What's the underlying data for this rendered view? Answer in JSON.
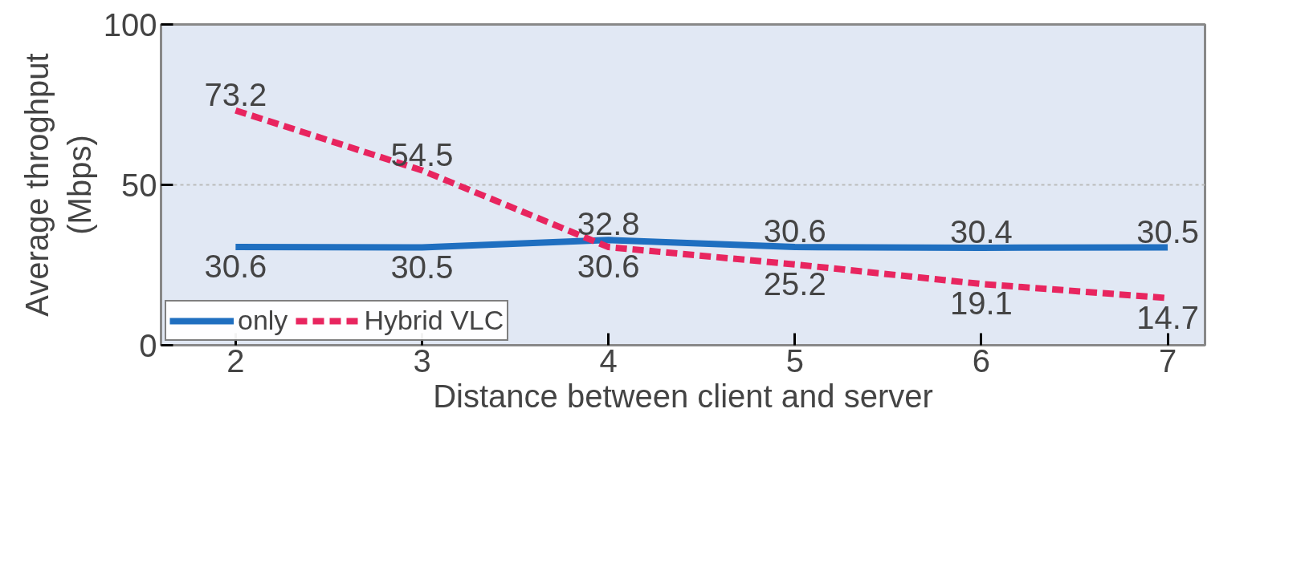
{
  "chart_data": {
    "type": "line",
    "xlabel": "Distance between client and server",
    "ylabel": "Average throghput\n(Mbps)",
    "x": [
      2,
      3,
      4,
      5,
      6,
      7
    ],
    "xlim": [
      1.6,
      7.2
    ],
    "xticks": [
      2,
      3,
      4,
      5,
      6,
      7
    ],
    "ylim": [
      0,
      100
    ],
    "yticks": [
      0,
      50,
      100
    ],
    "series": [
      {
        "name": "only",
        "color": "#1f6fc0",
        "line_style": "solid",
        "values": [
          30.6,
          30.5,
          32.8,
          30.6,
          30.4,
          30.5
        ]
      },
      {
        "name": "Hybrid VLC",
        "color": "#e8255f",
        "line_style": "dashed",
        "values": [
          73.2,
          54.5,
          30.6,
          25.2,
          19.1,
          14.7
        ]
      }
    ],
    "data_labels": true,
    "grid": "y",
    "legend": "bottom left",
    "marker": "none"
  }
}
